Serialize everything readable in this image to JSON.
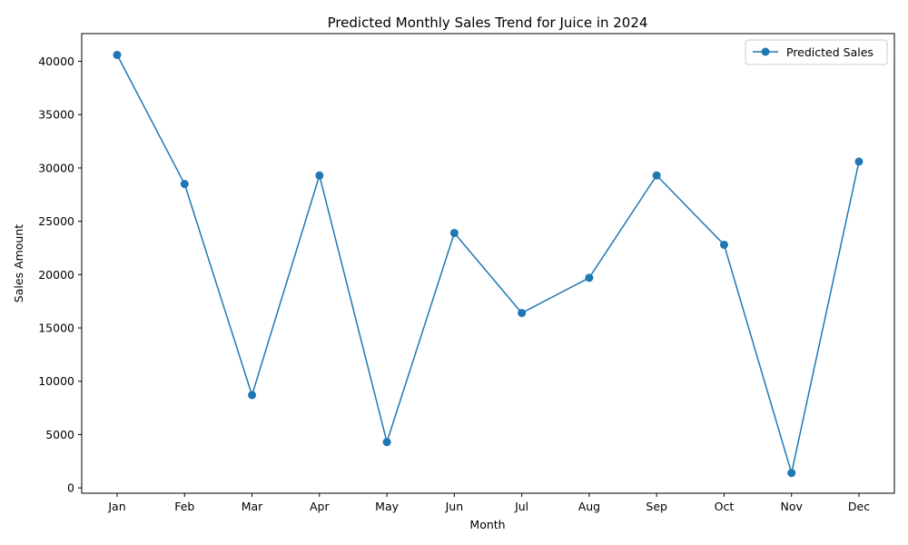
{
  "chart_data": {
    "type": "line",
    "title": "Predicted Monthly Sales Trend for Juice in 2024",
    "xlabel": "Month",
    "ylabel": "Sales Amount",
    "categories": [
      "Jan",
      "Feb",
      "Mar",
      "Apr",
      "May",
      "Jun",
      "Jul",
      "Aug",
      "Sep",
      "Oct",
      "Nov",
      "Dec"
    ],
    "series": [
      {
        "name": "Predicted Sales",
        "values": [
          40600,
          28500,
          8700,
          29300,
          4300,
          23900,
          16400,
          19700,
          29300,
          22800,
          1400,
          30600
        ],
        "color": "#1f77b4",
        "marker": "circle"
      }
    ],
    "ylim": [
      -500,
      42600
    ],
    "yticks": [
      0,
      5000,
      10000,
      15000,
      20000,
      25000,
      30000,
      35000,
      40000
    ],
    "ytick_labels": [
      "0",
      "5000",
      "10000",
      "15000",
      "20000",
      "25000",
      "30000",
      "35000",
      "40000"
    ],
    "grid": false,
    "legend": {
      "placement": "top-right",
      "entries": [
        "Predicted Sales"
      ]
    }
  }
}
